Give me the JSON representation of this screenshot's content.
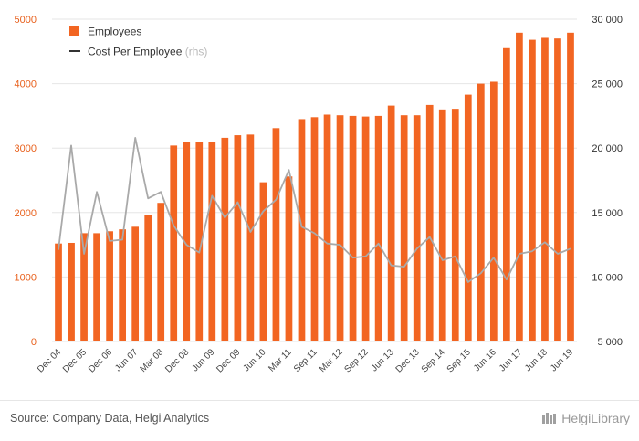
{
  "chart_data": {
    "type": "bar+line",
    "categories": [
      "Dec 04",
      "",
      "Dec 05",
      "",
      "Dec 06",
      "",
      "Jun 07",
      "",
      "Mar 08",
      "",
      "Dec 08",
      "",
      "Jun 09",
      "",
      "Dec 09",
      "",
      "Jun 10",
      "",
      "Mar 11",
      "",
      "Sep 11",
      "",
      "Mar 12",
      "",
      "Sep 12",
      "",
      "Jun 13",
      "",
      "Dec 13",
      "",
      "Sep 14",
      "",
      "Sep 15",
      "",
      "Jun 16",
      "",
      "Jun 17",
      "",
      "Jun 18",
      "",
      "Jun 19"
    ],
    "series": [
      {
        "name": "Employees",
        "type": "bar",
        "axis": "left",
        "color": "#f26522",
        "values": [
          1520,
          1530,
          1680,
          1680,
          1710,
          1740,
          1780,
          1960,
          2150,
          3040,
          3100,
          3100,
          3100,
          3160,
          3200,
          3210,
          2470,
          3310,
          2560,
          3450,
          3480,
          3520,
          3510,
          3500,
          3490,
          3500,
          3660,
          3510,
          3510,
          3670,
          3600,
          3610,
          3830,
          4000,
          4030,
          4550,
          4790,
          4680,
          4710,
          4700,
          4790
        ]
      },
      {
        "name": "Cost Per Employee",
        "name_suffix": "(rhs)",
        "type": "line",
        "axis": "right",
        "color": "#a9a9a9",
        "values": [
          12100,
          20200,
          11800,
          16600,
          12800,
          12900,
          20800,
          16100,
          16600,
          14000,
          12500,
          11900,
          16300,
          14600,
          15800,
          13500,
          15100,
          16000,
          18300,
          13900,
          13400,
          12600,
          12500,
          11500,
          11600,
          12600,
          10900,
          10800,
          12200,
          13100,
          11300,
          11600,
          9600,
          10300,
          11500,
          9800,
          11800,
          12000,
          12700,
          11800,
          12200
        ]
      }
    ],
    "y_left": {
      "min": 0,
      "max": 5000,
      "ticks": [
        "0",
        "1000",
        "2000",
        "3000",
        "4000",
        "5000"
      ],
      "tick_values": [
        0,
        1000,
        2000,
        3000,
        4000,
        5000
      ],
      "color": "#e8601c"
    },
    "y_right": {
      "min": 5000,
      "max": 30000,
      "ticks": [
        "5 000",
        "10 000",
        "15 000",
        "20 000",
        "25 000",
        "30 000"
      ],
      "tick_values": [
        5000,
        10000,
        15000,
        20000,
        25000,
        30000
      ]
    },
    "grid": true,
    "legend_position": "top-left"
  },
  "footer": {
    "source": "Source: Company Data, Helgi Analytics",
    "brand": "HelgiLibrary"
  }
}
